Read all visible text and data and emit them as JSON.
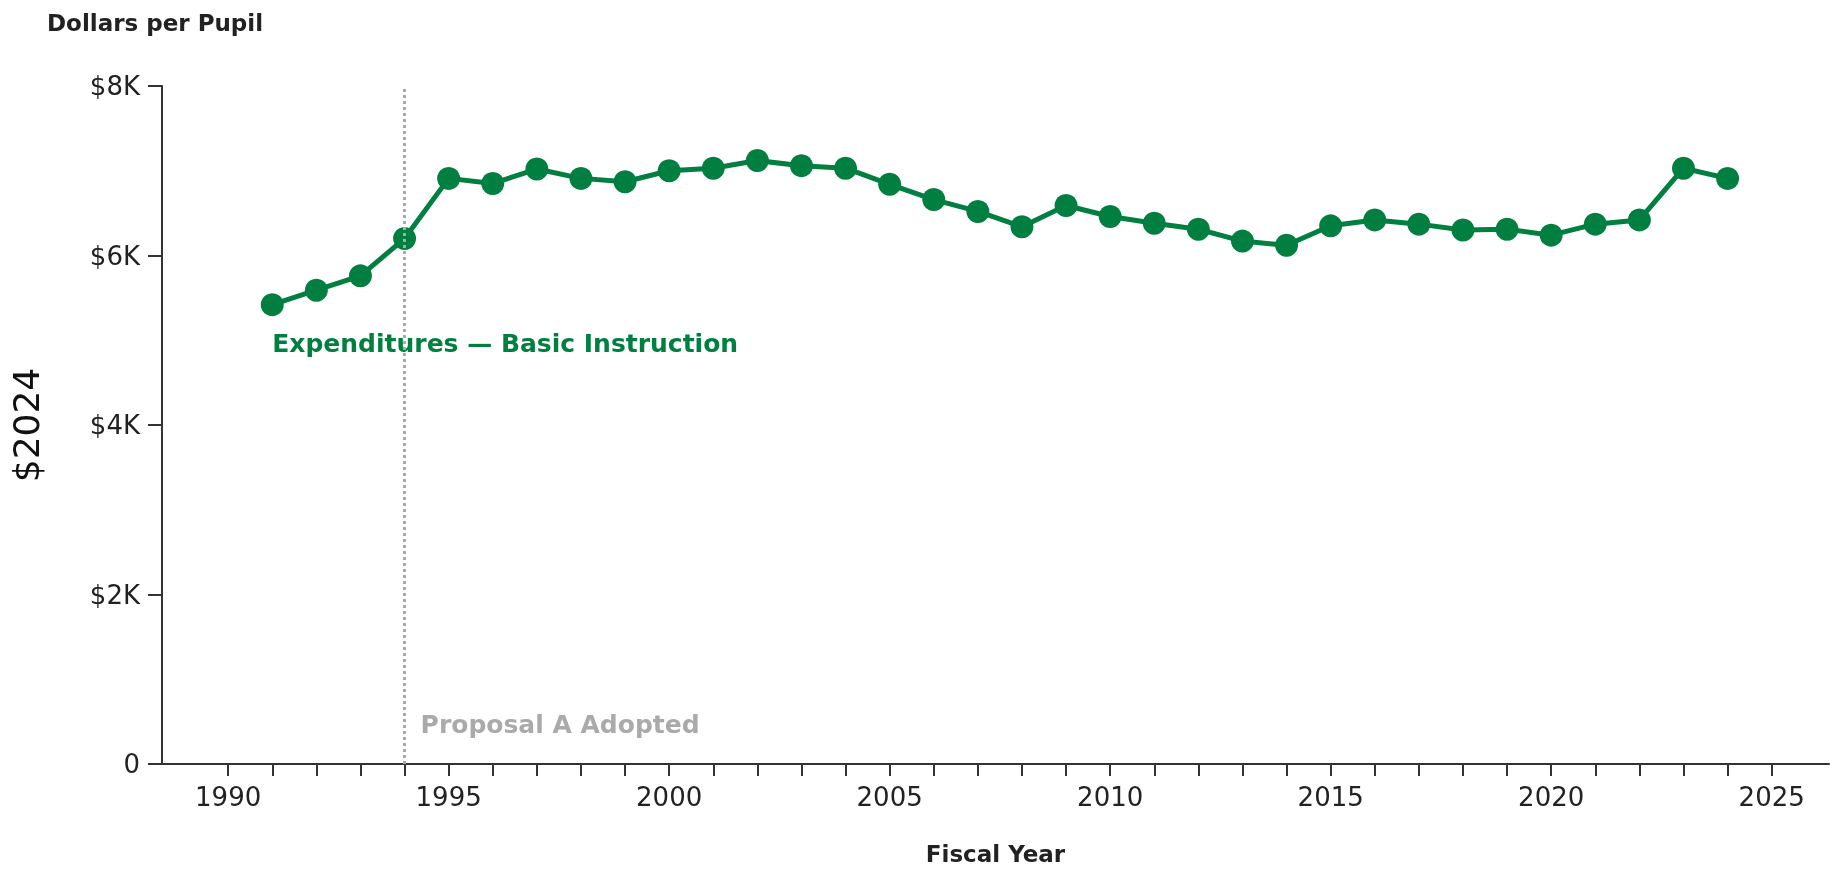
{
  "chart_data": {
    "type": "line",
    "title": "Dollars per Pupil",
    "xlabel": "Fiscal Year",
    "ylabel": "$2024",
    "x": [
      1991,
      1992,
      1993,
      1994,
      1995,
      1996,
      1997,
      1998,
      1999,
      2000,
      2001,
      2002,
      2003,
      2004,
      2005,
      2006,
      2007,
      2008,
      2009,
      2010,
      2011,
      2012,
      2013,
      2014,
      2015,
      2016,
      2017,
      2018,
      2019,
      2020,
      2021,
      2022,
      2023,
      2024
    ],
    "series": [
      {
        "name": "Expenditures — Basic Instruction",
        "color": "#007f41",
        "values": [
          5420,
          5590,
          5760,
          6200,
          6910,
          6850,
          7020,
          6910,
          6870,
          7000,
          7030,
          7120,
          7060,
          7030,
          6840,
          6660,
          6520,
          6340,
          6590,
          6460,
          6380,
          6310,
          6170,
          6120,
          6350,
          6420,
          6370,
          6300,
          6310,
          6240,
          6370,
          6420,
          7030,
          6910
        ]
      }
    ],
    "xlim": [
      1988.5,
      2026.3
    ],
    "xticks": [
      1990,
      {
        "value": 1991,
        "label": null
      },
      {
        "value": 1992,
        "label": null
      },
      {
        "value": 1993,
        "label": null
      },
      {
        "value": 1994,
        "label": null
      },
      1995,
      {
        "value": 1996,
        "label": null
      },
      {
        "value": 1997,
        "label": null
      },
      {
        "value": 1998,
        "label": null
      },
      {
        "value": 1999,
        "label": null
      },
      2000,
      {
        "value": 2001,
        "label": null
      },
      {
        "value": 2002,
        "label": null
      },
      {
        "value": 2003,
        "label": null
      },
      {
        "value": 2004,
        "label": null
      },
      2005,
      {
        "value": 2006,
        "label": null
      },
      {
        "value": 2007,
        "label": null
      },
      {
        "value": 2008,
        "label": null
      },
      {
        "value": 2009,
        "label": null
      },
      2010,
      {
        "value": 2011,
        "label": null
      },
      {
        "value": 2012,
        "label": null
      },
      {
        "value": 2013,
        "label": null
      },
      {
        "value": 2014,
        "label": null
      },
      2015,
      {
        "value": 2016,
        "label": null
      },
      {
        "value": 2017,
        "label": null
      },
      {
        "value": 2018,
        "label": null
      },
      {
        "value": 2019,
        "label": null
      },
      2020,
      {
        "value": 2021,
        "label": null
      },
      {
        "value": 2022,
        "label": null
      },
      {
        "value": 2023,
        "label": null
      },
      {
        "value": 2024,
        "label": null
      },
      2025
    ],
    "ylim": [
      0,
      8000
    ],
    "yticks": [
      0,
      {
        "value": 2000,
        "label": "$2K"
      },
      {
        "value": 4000,
        "label": "$4K"
      },
      {
        "value": 6000,
        "label": "$6K"
      },
      {
        "value": 8000,
        "label": "$8K"
      }
    ],
    "ref_lines": [
      {
        "axis": "x",
        "value": 1994,
        "label": "Proposal A Adopted",
        "color": "#aaaaaa",
        "line_style": "dotted"
      }
    ],
    "grid": false,
    "marker": "circle",
    "line_style": "solid"
  }
}
